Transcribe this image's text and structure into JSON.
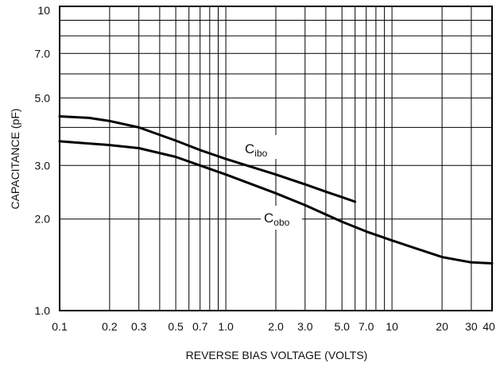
{
  "chart_data": {
    "type": "line",
    "xlabel": "REVERSE BIAS VOLTAGE (VOLTS)",
    "ylabel": "CAPACITANCE (pF)",
    "x_scale": "log",
    "y_scale": "log",
    "xlim": [
      0.1,
      40
    ],
    "ylim": [
      1.0,
      10
    ],
    "x_ticks": [
      {
        "value": 0.1,
        "label": "0.1"
      },
      {
        "value": 0.2,
        "label": "0.2"
      },
      {
        "value": 0.3,
        "label": "0.3"
      },
      {
        "value": 0.5,
        "label": "0.5"
      },
      {
        "value": 0.7,
        "label": "0.7"
      },
      {
        "value": 1.0,
        "label": "1.0"
      },
      {
        "value": 2.0,
        "label": "2.0"
      },
      {
        "value": 3.0,
        "label": "3.0"
      },
      {
        "value": 5.0,
        "label": "5.0"
      },
      {
        "value": 7.0,
        "label": "7.0"
      },
      {
        "value": 10,
        "label": "10"
      },
      {
        "value": 20,
        "label": "20"
      },
      {
        "value": 30,
        "label": "30"
      },
      {
        "value": 40,
        "label": "40"
      }
    ],
    "y_ticks": [
      {
        "value": 1.0,
        "label": "1.0"
      },
      {
        "value": 2.0,
        "label": "2.0"
      },
      {
        "value": 3.0,
        "label": "3.0"
      },
      {
        "value": 5.0,
        "label": "5.0"
      },
      {
        "value": 7.0,
        "label": "7.0"
      },
      {
        "value": 10,
        "label": "10"
      }
    ],
    "x_grid": [
      0.1,
      0.2,
      0.3,
      0.4,
      0.5,
      0.6,
      0.7,
      0.8,
      0.9,
      1,
      2,
      3,
      4,
      5,
      6,
      7,
      8,
      9,
      10,
      20,
      30,
      40
    ],
    "y_grid": [
      1,
      2,
      3,
      4,
      5,
      6,
      7,
      8,
      9,
      10
    ],
    "grid": true,
    "series": [
      {
        "name": "C",
        "subscript": "ibo",
        "x": [
          0.1,
          0.15,
          0.2,
          0.3,
          0.5,
          0.7,
          1.0,
          2.0,
          3.0,
          4.0,
          5.0,
          6.0
        ],
        "y": [
          4.35,
          4.3,
          4.2,
          4.0,
          3.62,
          3.37,
          3.15,
          2.8,
          2.6,
          2.46,
          2.36,
          2.28
        ]
      },
      {
        "name": "C",
        "subscript": "obo",
        "x": [
          0.1,
          0.2,
          0.3,
          0.5,
          0.7,
          1.0,
          2.0,
          3.0,
          5.0,
          7.0,
          10,
          20,
          30,
          40
        ],
        "y": [
          3.6,
          3.5,
          3.42,
          3.2,
          3.0,
          2.8,
          2.43,
          2.22,
          1.96,
          1.82,
          1.7,
          1.5,
          1.44,
          1.43
        ]
      }
    ]
  }
}
